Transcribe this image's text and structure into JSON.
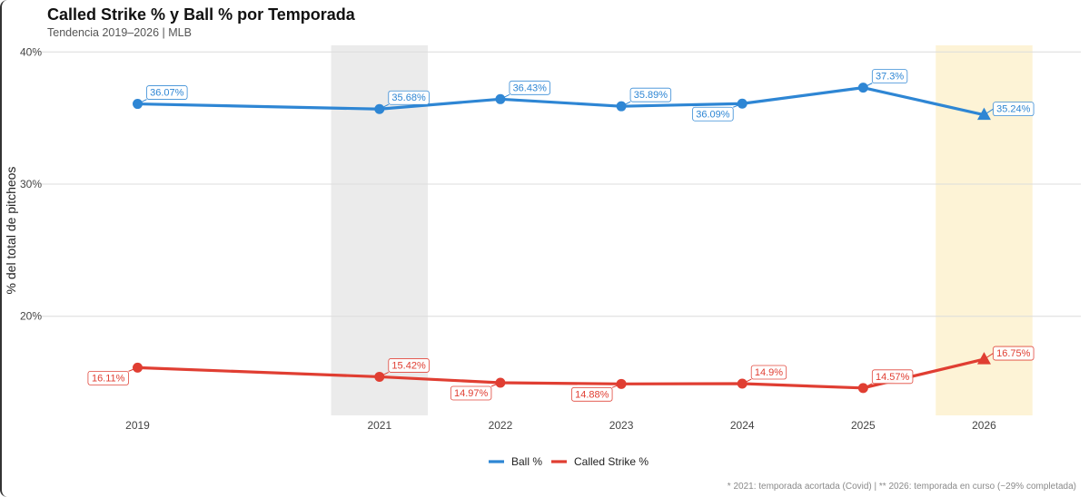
{
  "chart_data": {
    "type": "line",
    "title": "Called Strike % y Ball % por Temporada",
    "subtitle": "Tendencia 2019–2026 | MLB",
    "xlabel": "",
    "ylabel": "% del total de pitcheos",
    "ylim": [
      12.5,
      40.5
    ],
    "yticks": [
      20,
      30,
      40
    ],
    "ytick_labels": [
      "20%",
      "30%",
      "40%"
    ],
    "x": [
      "2019",
      "2021",
      "2022",
      "2023",
      "2024",
      "2025",
      "2026"
    ],
    "x_positions": [
      2019,
      2021,
      2022,
      2023,
      2024,
      2025,
      2026
    ],
    "xlim": [
      2018.2,
      2026.8
    ],
    "highlight_bands": [
      {
        "from": 2020.6,
        "to": 2021.4,
        "color": "#ebebeb"
      },
      {
        "from": 2025.6,
        "to": 2026.4,
        "color": "#fdf3d6"
      }
    ],
    "series": [
      {
        "name": "Ball %",
        "color": "#2e86d4",
        "values": [
          36.07,
          35.68,
          36.43,
          35.89,
          36.09,
          37.3,
          35.24
        ],
        "labels": [
          "36.07%",
          "35.68%",
          "36.43%",
          "35.89%",
          "36.09%",
          "37.3%",
          "35.24%"
        ],
        "label_pos": [
          "above-right",
          "above-right",
          "above-right",
          "above-right",
          "below-left",
          "above-right",
          "right"
        ]
      },
      {
        "name": "Called Strike %",
        "color": "#e03e32",
        "values": [
          16.11,
          15.42,
          14.97,
          14.88,
          14.9,
          14.57,
          16.75
        ],
        "labels": [
          "16.11%",
          "15.42%",
          "14.97%",
          "14.88%",
          "14.9%",
          "14.57%",
          "16.75%"
        ],
        "label_pos": [
          "below-left",
          "above-right",
          "below-left",
          "below-left",
          "above-right",
          "above-right",
          "right"
        ]
      }
    ],
    "last_point_marker": "triangle",
    "legend": "bottom",
    "grid": true
  },
  "footnote": "* 2021: temporada acortada (Covid)  |  ** 2026: temporada en curso (~29% completada)"
}
